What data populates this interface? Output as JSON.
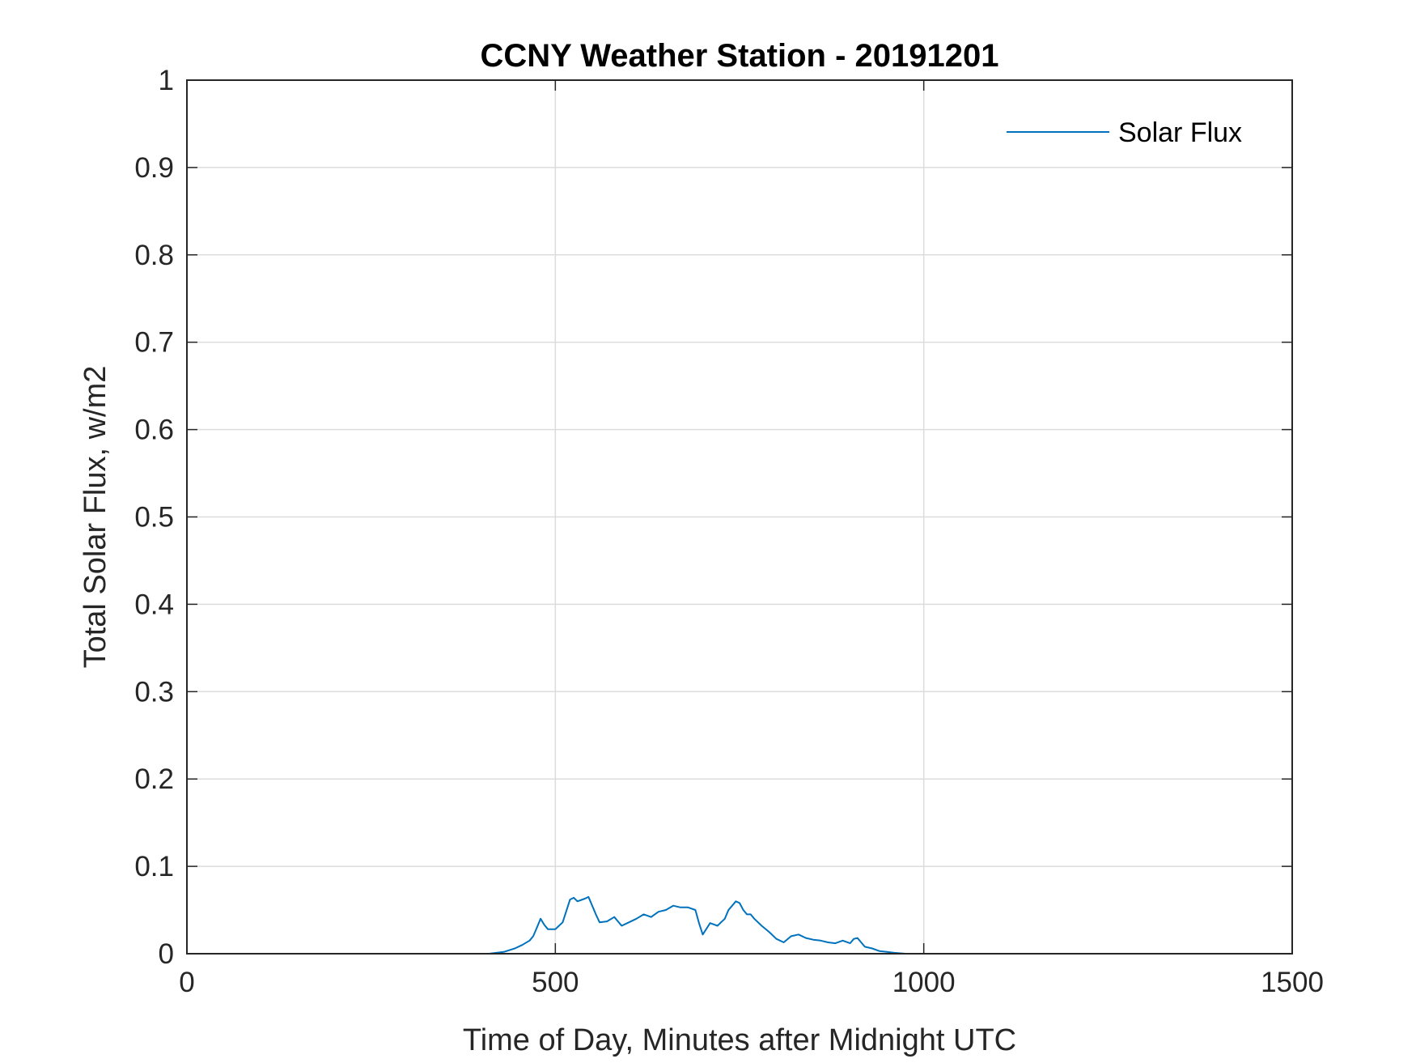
{
  "chart_data": {
    "type": "line",
    "title": "CCNY Weather Station - 20191201",
    "xlabel": "Time of Day, Minutes after Midnight UTC",
    "ylabel": "Total Solar Flux, w/m2",
    "xlim": [
      0,
      1500
    ],
    "ylim": [
      0,
      1
    ],
    "xticks": [
      0,
      500,
      1000,
      1500
    ],
    "xtick_labels": [
      "0",
      "500",
      "1000",
      "1500"
    ],
    "yticks": [
      0,
      0.1,
      0.2,
      0.3,
      0.4,
      0.5,
      0.6,
      0.7,
      0.8,
      0.9,
      1
    ],
    "ytick_labels": [
      "0",
      "0.1",
      "0.2",
      "0.3",
      "0.4",
      "0.5",
      "0.6",
      "0.7",
      "0.8",
      "0.9",
      "1"
    ],
    "grid": true,
    "legend": {
      "position": "top-right",
      "entries": [
        "Solar Flux"
      ]
    },
    "series": [
      {
        "name": "Solar Flux",
        "color": "#0072bd",
        "x": [
          0,
          410,
          430,
          445,
          455,
          465,
          470,
          475,
          480,
          485,
          490,
          500,
          510,
          520,
          525,
          530,
          540,
          545,
          550,
          555,
          560,
          570,
          580,
          590,
          600,
          610,
          620,
          630,
          640,
          650,
          660,
          670,
          680,
          690,
          695,
          700,
          710,
          720,
          730,
          735,
          740,
          745,
          750,
          755,
          760,
          765,
          770,
          780,
          790,
          800,
          810,
          820,
          830,
          840,
          850,
          860,
          870,
          880,
          890,
          900,
          905,
          910,
          915,
          920,
          930,
          940,
          950,
          960,
          975,
          990,
          1000,
          1440
        ],
        "y": [
          0,
          0,
          0.002,
          0.006,
          0.01,
          0.015,
          0.02,
          0.03,
          0.04,
          0.033,
          0.028,
          0.028,
          0.036,
          0.062,
          0.064,
          0.06,
          0.063,
          0.065,
          0.055,
          0.045,
          0.036,
          0.037,
          0.042,
          0.032,
          0.036,
          0.04,
          0.045,
          0.042,
          0.048,
          0.05,
          0.055,
          0.053,
          0.053,
          0.05,
          0.035,
          0.022,
          0.035,
          0.032,
          0.04,
          0.05,
          0.055,
          0.06,
          0.058,
          0.05,
          0.045,
          0.045,
          0.04,
          0.032,
          0.025,
          0.017,
          0.013,
          0.02,
          0.022,
          0.018,
          0.016,
          0.015,
          0.013,
          0.012,
          0.015,
          0.012,
          0.017,
          0.018,
          0.013,
          0.008,
          0.006,
          0.003,
          0.002,
          0.001,
          0,
          0,
          0,
          0
        ]
      }
    ]
  }
}
